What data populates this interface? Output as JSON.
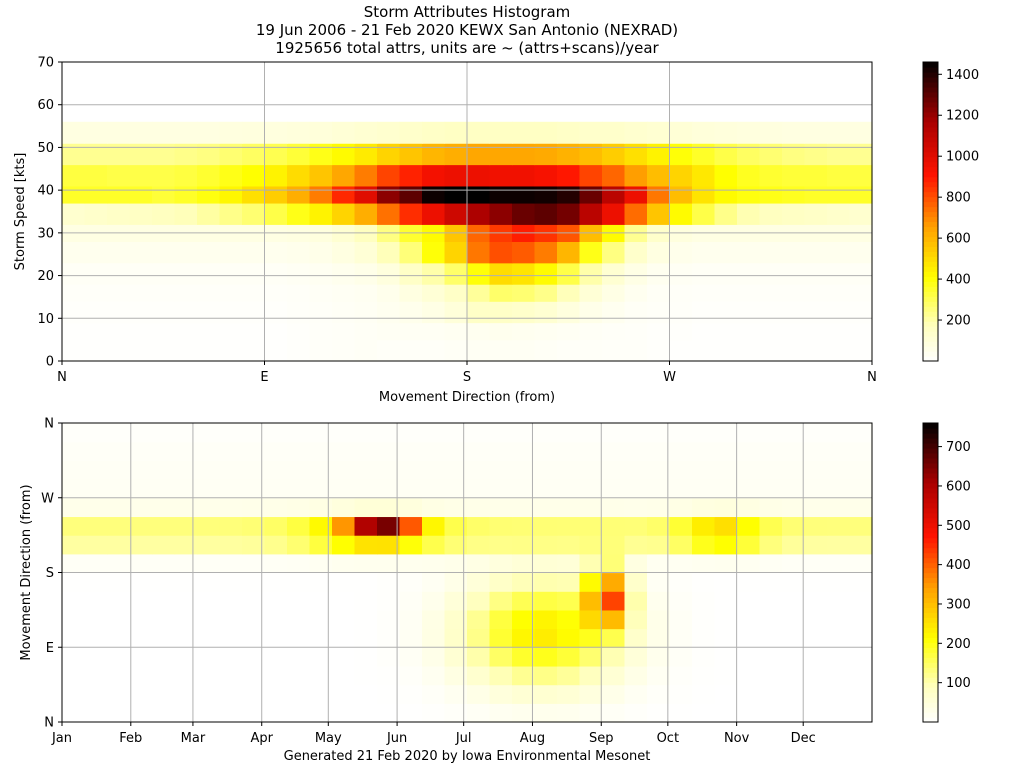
{
  "header": {
    "title_line1": "Storm Attributes Histogram",
    "title_line2": "19 Jun 2006 - 21 Feb 2020 KEWX San Antonio (NEXRAD)",
    "title_line3": "1925656 total attrs, units are ~ (attrs+scans)/year"
  },
  "footer": "Generated 21 Feb 2020 by Iowa Environmental Mesonet",
  "chart_data": [
    {
      "type": "heatmap",
      "xlabel": "Movement Direction (from)",
      "ylabel": "Storm Speed [kts]",
      "xticks": [
        "N",
        "E",
        "S",
        "W",
        "N"
      ],
      "yticks": [
        0,
        10,
        20,
        30,
        40,
        50,
        60,
        70
      ],
      "ylim": [
        0,
        70
      ],
      "colorbar_ticks": [
        200,
        400,
        600,
        800,
        1000,
        1200,
        1400
      ],
      "colorbar_range": [
        0,
        1460
      ],
      "x_bins": 36,
      "y_bin_edges": [
        0,
        5,
        9,
        14,
        18,
        23,
        28,
        32,
        37,
        41,
        46,
        51,
        56,
        60,
        65,
        70
      ],
      "values": [
        [
          5,
          5,
          5,
          5,
          5,
          5,
          5,
          5,
          5,
          5,
          10,
          15,
          20,
          25,
          20,
          20,
          20,
          25,
          30,
          30,
          30,
          25,
          20,
          20,
          15,
          15,
          10,
          5,
          5,
          5,
          5,
          5,
          5,
          5,
          5,
          5
        ],
        [
          5,
          5,
          5,
          5,
          5,
          5,
          5,
          5,
          5,
          5,
          10,
          15,
          20,
          25,
          30,
          30,
          30,
          35,
          40,
          45,
          40,
          35,
          30,
          25,
          20,
          15,
          10,
          10,
          5,
          5,
          5,
          5,
          5,
          5,
          5,
          5
        ],
        [
          10,
          10,
          10,
          10,
          10,
          10,
          10,
          10,
          10,
          10,
          15,
          20,
          25,
          30,
          40,
          50,
          70,
          100,
          150,
          150,
          140,
          120,
          90,
          60,
          40,
          25,
          20,
          15,
          10,
          10,
          10,
          10,
          10,
          10,
          10,
          10
        ],
        [
          15,
          15,
          15,
          15,
          15,
          15,
          15,
          15,
          15,
          15,
          20,
          25,
          30,
          35,
          50,
          80,
          110,
          150,
          220,
          280,
          270,
          240,
          180,
          110,
          70,
          40,
          25,
          20,
          15,
          15,
          15,
          15,
          15,
          15,
          15,
          15
        ],
        [
          25,
          25,
          25,
          25,
          25,
          25,
          25,
          25,
          25,
          25,
          30,
          35,
          45,
          60,
          90,
          150,
          200,
          280,
          400,
          500,
          480,
          420,
          320,
          200,
          120,
          70,
          40,
          30,
          25,
          25,
          25,
          25,
          25,
          25,
          25,
          25
        ],
        [
          45,
          45,
          45,
          45,
          45,
          45,
          45,
          45,
          45,
          45,
          50,
          60,
          80,
          110,
          180,
          260,
          400,
          520,
          730,
          800,
          780,
          720,
          600,
          380,
          250,
          140,
          80,
          55,
          45,
          45,
          45,
          45,
          45,
          45,
          45,
          45
        ],
        [
          75,
          75,
          75,
          75,
          75,
          75,
          75,
          75,
          75,
          75,
          80,
          90,
          120,
          170,
          250,
          350,
          420,
          560,
          760,
          840,
          890,
          850,
          790,
          580,
          420,
          230,
          140,
          90,
          75,
          75,
          75,
          75,
          75,
          75,
          75,
          75
        ],
        [
          130,
          140,
          150,
          160,
          170,
          180,
          210,
          240,
          270,
          320,
          380,
          440,
          520,
          620,
          740,
          860,
          960,
          1060,
          1160,
          1220,
          1280,
          1300,
          1260,
          1120,
          960,
          750,
          560,
          420,
          320,
          240,
          190,
          170,
          160,
          150,
          140,
          130
        ],
        [
          360,
          360,
          360,
          360,
          340,
          360,
          390,
          430,
          490,
          540,
          620,
          720,
          870,
          1000,
          1220,
          1300,
          1440,
          1460,
          1460,
          1440,
          1440,
          1430,
          1400,
          1280,
          1120,
          960,
          730,
          580,
          480,
          420,
          390,
          380,
          370,
          360,
          360,
          360
        ],
        [
          330,
          330,
          320,
          320,
          320,
          330,
          350,
          380,
          410,
          440,
          500,
          560,
          640,
          720,
          820,
          880,
          940,
          960,
          960,
          950,
          950,
          930,
          900,
          820,
          760,
          660,
          580,
          520,
          470,
          410,
          370,
          350,
          340,
          340,
          330,
          330
        ],
        [
          230,
          230,
          230,
          230,
          230,
          240,
          250,
          270,
          290,
          310,
          340,
          380,
          420,
          460,
          520,
          560,
          600,
          620,
          640,
          640,
          640,
          630,
          610,
          580,
          540,
          490,
          440,
          400,
          360,
          320,
          290,
          270,
          250,
          240,
          230,
          230
        ],
        [
          80,
          80,
          80,
          80,
          80,
          80,
          80,
          85,
          90,
          90,
          95,
          100,
          110,
          120,
          130,
          140,
          150,
          160,
          160,
          160,
          160,
          160,
          150,
          140,
          140,
          130,
          120,
          110,
          100,
          95,
          90,
          85,
          80,
          80,
          80,
          80
        ]
      ],
      "colormap_hint": "white-yellow-orange-red-black"
    },
    {
      "type": "heatmap",
      "xlabel": "",
      "ylabel": "Movement Direction (from)",
      "xticks": [
        "Jan",
        "Feb",
        "Mar",
        "Apr",
        "May",
        "Jun",
        "Jul",
        "Aug",
        "Sep",
        "Oct",
        "Nov",
        "Dec"
      ],
      "yticks": [
        "N",
        "E",
        "S",
        "W",
        "N"
      ],
      "colorbar_ticks": [
        100,
        200,
        300,
        400,
        500,
        600,
        700
      ],
      "colorbar_range": [
        0,
        760
      ],
      "x_bins": 36,
      "y_bins": 16
    }
  ]
}
